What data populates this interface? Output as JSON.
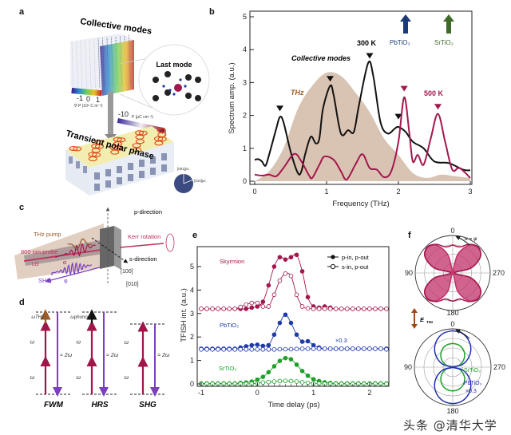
{
  "panel_labels": {
    "a": "a",
    "b": "b",
    "c": "c",
    "d": "d",
    "e": "e",
    "f": "f"
  },
  "panel_a": {
    "title": "Collective modes",
    "inset_title": "Last mode",
    "bottom_title": "Transient polar phase",
    "colorbar1_ticks": [
      "-1",
      "0",
      "1"
    ],
    "colorbar1_label": "∇·P (10⁸ C m⁻³)",
    "colorbar2_ticks": [
      "-10",
      "10"
    ],
    "colorbar2_label": "P (μC cm⁻²)",
    "axes": [
      "[001]pc",
      "[010]pc"
    ]
  },
  "panel_c": {
    "p_direction": "p-direction",
    "s_direction": "s-direction",
    "thz_pump": "THz pump",
    "probe": "800 nm probe",
    "lo": "LO",
    "shg": "SHG",
    "alpha": "α",
    "phi": "φ",
    "kerr": "Kerr rotation",
    "dir100": "[100]",
    "dir010": "[010]"
  },
  "panel_d": {
    "diagrams": [
      {
        "name": "FWM",
        "top_label": "ωTHz",
        "omega": "ω",
        "result": "≈ 2ω",
        "extra_color": "#9a5a2a"
      },
      {
        "name": "HRS",
        "top_label": "ωphonon",
        "omega": "ω",
        "result": "≈ 2ω",
        "extra_color": "#111111"
      },
      {
        "name": "SHG",
        "top_label": "",
        "omega": "ω",
        "result": "= 2ω",
        "extra_color": ""
      }
    ],
    "colors": {
      "pump": "#a0154a",
      "emit": "#7b3fc4"
    }
  },
  "chart_data": [
    {
      "panel": "b",
      "type": "line",
      "xlabel": "Frequency (THz)",
      "ylabel": "Spectrum amp. (a.u.)",
      "xlim": [
        0,
        3
      ],
      "ylim": [
        0,
        5
      ],
      "xticks": [
        "0",
        "1",
        "2",
        "3"
      ],
      "yticks": [
        "0",
        "1",
        "2",
        "3",
        "4",
        "5"
      ],
      "annotations": {
        "collective": "Collective modes",
        "t300": "300 K",
        "t500": "500 K",
        "thz": "THz",
        "pbtio3": "PbTiO₃",
        "srtio3": "SrTiO₃"
      },
      "arrows": {
        "PbTiO3_freq": 2.1,
        "SrTiO3_freq": 2.7,
        "PbTiO3_color": "#1a3a7a",
        "SrTiO3_color": "#3f6a2a"
      },
      "series": [
        {
          "name": "THz",
          "kind": "area",
          "color": "#d9c3b3",
          "x": [
            0,
            0.2,
            0.4,
            0.6,
            0.8,
            1.0,
            1.2,
            1.4,
            1.6,
            1.8,
            2.0,
            2.2,
            2.4,
            2.6,
            2.8,
            3.0
          ],
          "y": [
            0,
            0.3,
            1.0,
            2.2,
            2.9,
            3.3,
            3.2,
            2.7,
            2.1,
            1.3,
            0.8,
            0.25,
            0.1,
            0.2,
            0.15,
            0.1
          ]
        },
        {
          "name": "300 K",
          "kind": "line",
          "color": "#111111",
          "x": [
            0,
            0.05,
            0.1,
            0.15,
            0.2,
            0.3,
            0.35,
            0.4,
            0.5,
            0.6,
            0.65,
            0.7,
            0.78,
            0.85,
            0.9,
            0.95,
            1.05,
            1.1,
            1.2,
            1.3,
            1.38,
            1.45,
            1.58,
            1.65,
            1.75,
            1.85,
            1.95,
            2.0,
            2.1,
            2.2,
            2.35,
            2.5,
            2.7,
            2.9,
            3.0
          ],
          "y": [
            0.65,
            0.67,
            0.6,
            0.47,
            0.8,
            1.6,
            1.95,
            1.8,
            0.9,
            0.25,
            0.3,
            0.8,
            1.35,
            1.15,
            1.3,
            2.2,
            2.9,
            2.6,
            1.45,
            1.55,
            1.5,
            2.3,
            3.6,
            3.2,
            1.8,
            1.45,
            1.6,
            1.65,
            1.5,
            1.2,
            1.0,
            0.6,
            0.55,
            0.35,
            0.33
          ],
          "peaks": [
            0.35,
            1.05,
            1.6,
            2.0
          ],
          "peak_marker_y": [
            2.2,
            3.1,
            3.8,
            1.95
          ]
        },
        {
          "name": "500 K",
          "kind": "line",
          "color": "#a3174d",
          "x": [
            0,
            0.1,
            0.2,
            0.3,
            0.4,
            0.55,
            0.65,
            0.75,
            0.8,
            0.9,
            0.97,
            1.1,
            1.2,
            1.28,
            1.4,
            1.5,
            1.6,
            1.7,
            1.8,
            1.9,
            2.0,
            2.08,
            2.15,
            2.2,
            2.27,
            2.35,
            2.45,
            2.55,
            2.65,
            2.75,
            2.85,
            3.0
          ],
          "y": [
            0.2,
            0.17,
            0.2,
            0.15,
            0.4,
            0.83,
            0.6,
            0.2,
            0.1,
            0.5,
            0.75,
            0.65,
            0.3,
            0.05,
            0.5,
            0.82,
            0.4,
            0.35,
            0.12,
            0.3,
            1.2,
            2.55,
            1.5,
            0.6,
            0.8,
            0.5,
            1.3,
            2.05,
            1.2,
            0.35,
            0.4,
            0.1
          ],
          "peaks": [
            2.08,
            2.55
          ],
          "peak_marker_y": [
            2.8,
            2.25
          ]
        }
      ]
    },
    {
      "panel": "e",
      "type": "line",
      "xlabel": "Time delay (ps)",
      "ylabel": "TFISH int. (a.u.)",
      "xlim": [
        -1,
        2.3
      ],
      "ylim": [
        -0.1,
        5.8
      ],
      "xticks": [
        "-1",
        "0",
        "1",
        "2"
      ],
      "yticks": [
        "0",
        "1",
        "2",
        "3",
        "4",
        "5"
      ],
      "legend": {
        "filled": "p-in, p-out",
        "open": "s-in, p-out",
        "position": "top-right"
      },
      "labels": {
        "skyrmion": "Skyrmion",
        "pbtio3": "PbTiO₃",
        "srtio3": "SrTiO₃",
        "scale": "×0.3"
      },
      "x": [
        -1.0,
        -0.9,
        -0.8,
        -0.7,
        -0.6,
        -0.5,
        -0.4,
        -0.3,
        -0.2,
        -0.1,
        0.0,
        0.1,
        0.2,
        0.3,
        0.4,
        0.5,
        0.6,
        0.7,
        0.8,
        0.9,
        1.0,
        1.1,
        1.2,
        1.3,
        1.4,
        1.5,
        1.6,
        1.7,
        1.8,
        1.9,
        2.0,
        2.1,
        2.2,
        2.3
      ],
      "series": [
        {
          "sample": "Skyrmion",
          "pol": "p-in, p-out",
          "filled": true,
          "color": "#a3174d",
          "y": [
            3.2,
            3.2,
            3.2,
            3.2,
            3.2,
            3.2,
            3.2,
            3.2,
            3.2,
            3.25,
            3.3,
            3.5,
            4.2,
            5.0,
            5.4,
            5.3,
            5.4,
            5.5,
            4.8,
            3.7,
            3.3,
            3.25,
            3.3,
            3.25,
            3.2,
            3.2,
            3.2,
            3.2,
            3.2,
            3.2,
            3.2,
            3.2,
            3.2,
            3.2
          ]
        },
        {
          "sample": "Skyrmion",
          "pol": "s-in, p-out",
          "filled": false,
          "color": "#a3174d",
          "y": [
            3.2,
            3.2,
            3.2,
            3.2,
            3.2,
            3.2,
            3.2,
            3.28,
            3.38,
            3.45,
            3.45,
            3.3,
            3.3,
            3.8,
            4.4,
            4.7,
            4.6,
            3.8,
            3.3,
            3.22,
            3.2,
            3.2,
            3.2,
            3.2,
            3.2,
            3.2,
            3.2,
            3.2,
            3.2,
            3.2,
            3.2,
            3.2,
            3.2,
            3.2
          ]
        },
        {
          "sample": "PbTiO3",
          "pol": "p-in, p-out",
          "filled": true,
          "color": "#1f3aa8",
          "y": [
            1.5,
            1.5,
            1.5,
            1.5,
            1.5,
            1.5,
            1.5,
            1.55,
            1.6,
            1.65,
            1.67,
            1.62,
            1.65,
            2.1,
            2.6,
            2.95,
            2.6,
            2.1,
            1.8,
            1.82,
            1.65,
            1.55,
            1.5,
            1.5,
            1.5,
            1.5,
            1.5,
            1.5,
            1.5,
            1.5,
            1.5,
            1.5,
            1.5,
            1.5
          ]
        },
        {
          "sample": "PbTiO3",
          "pol": "s-in, p-out",
          "filled": false,
          "color": "#1f3aa8",
          "y": [
            1.47,
            1.47,
            1.47,
            1.47,
            1.47,
            1.47,
            1.47,
            1.47,
            1.47,
            1.47,
            1.47,
            1.47,
            1.47,
            1.47,
            1.48,
            1.48,
            1.48,
            1.49,
            1.5,
            1.5,
            1.5,
            1.5,
            1.5,
            1.5,
            1.5,
            1.5,
            1.5,
            1.5,
            1.5,
            1.5,
            1.5,
            1.5,
            1.5,
            1.47
          ]
        },
        {
          "sample": "SrTiO3",
          "pol": "p-in, p-out",
          "filled": true,
          "color": "#1fa02a",
          "y": [
            0.02,
            0.02,
            0.02,
            0.02,
            0.02,
            0.02,
            0.02,
            0.04,
            0.06,
            0.1,
            0.18,
            0.3,
            0.5,
            0.75,
            0.98,
            1.1,
            1.05,
            0.82,
            0.55,
            0.35,
            0.2,
            0.12,
            0.07,
            0.04,
            0.02,
            0.02,
            0.02,
            0.02,
            0.02,
            0.02,
            0.02,
            0.02,
            0.02,
            0.02
          ]
        },
        {
          "sample": "SrTiO3",
          "pol": "s-in, p-out",
          "filled": false,
          "color": "#1fa02a",
          "y": [
            0,
            0,
            0,
            0,
            0,
            0,
            0,
            0,
            0,
            0.01,
            0.03,
            0.06,
            0.08,
            0.1,
            0.12,
            0.13,
            0.12,
            0.1,
            0.07,
            0.05,
            0.03,
            0.01,
            0,
            0,
            0,
            0,
            0,
            0,
            0,
            0,
            0,
            0,
            0,
            0
          ]
        }
      ]
    },
    {
      "panel": "f",
      "type": "polar",
      "angle_labels": [
        "0",
        "90",
        "180",
        "270"
      ],
      "alpha_eq": "α = φ",
      "ethz": "E",
      "ethz_sub": "THz",
      "angles": [
        0,
        15,
        30,
        45,
        60,
        75,
        90,
        105,
        120,
        135,
        150,
        165,
        180,
        195,
        210,
        225,
        240,
        255,
        270,
        285,
        300,
        315,
        330,
        345
      ],
      "top": [
        {
          "name": "Skyrmion lobes",
          "color": "#c0306a",
          "fill": true,
          "r": [
            0,
            0.5,
            0.85,
            0.95,
            0.85,
            0.5,
            0,
            0.5,
            0.85,
            0.95,
            0.85,
            0.5,
            0,
            0.5,
            0.85,
            0.95,
            0.85,
            0.5,
            0,
            0.5,
            0.85,
            0.95,
            0.85,
            0.5
          ]
        },
        {
          "name": "Skyrmion outline",
          "color": "#a3174d",
          "fill": false,
          "r": [
            0.75,
            0.72,
            0.88,
            0.97,
            0.85,
            0.5,
            0.05,
            0.5,
            0.85,
            0.97,
            0.88,
            0.72,
            0.75,
            0.72,
            0.88,
            0.97,
            0.85,
            0.5,
            0.05,
            0.5,
            0.85,
            0.97,
            0.88,
            0.72
          ]
        }
      ],
      "bottom": [
        {
          "name": "SrTiO₃",
          "color": "#1fa02a",
          "r": [
            0.62,
            0.6,
            0.54,
            0.44,
            0.31,
            0.16,
            0,
            0.16,
            0.31,
            0.44,
            0.54,
            0.6,
            0.62,
            0.6,
            0.54,
            0.44,
            0.31,
            0.16,
            0,
            0.16,
            0.31,
            0.44,
            0.54,
            0.6
          ]
        },
        {
          "name": "PbTiO₃",
          "label2": "×0.3",
          "color": "#1f2fb0",
          "r": [
            0.95,
            0.92,
            0.82,
            0.67,
            0.47,
            0.25,
            0,
            0.25,
            0.47,
            0.67,
            0.82,
            0.92,
            0.95,
            0.92,
            0.82,
            0.67,
            0.47,
            0.25,
            0,
            0.25,
            0.47,
            0.67,
            0.82,
            0.92
          ]
        }
      ]
    }
  ],
  "watermark": "头条 @清华大学"
}
